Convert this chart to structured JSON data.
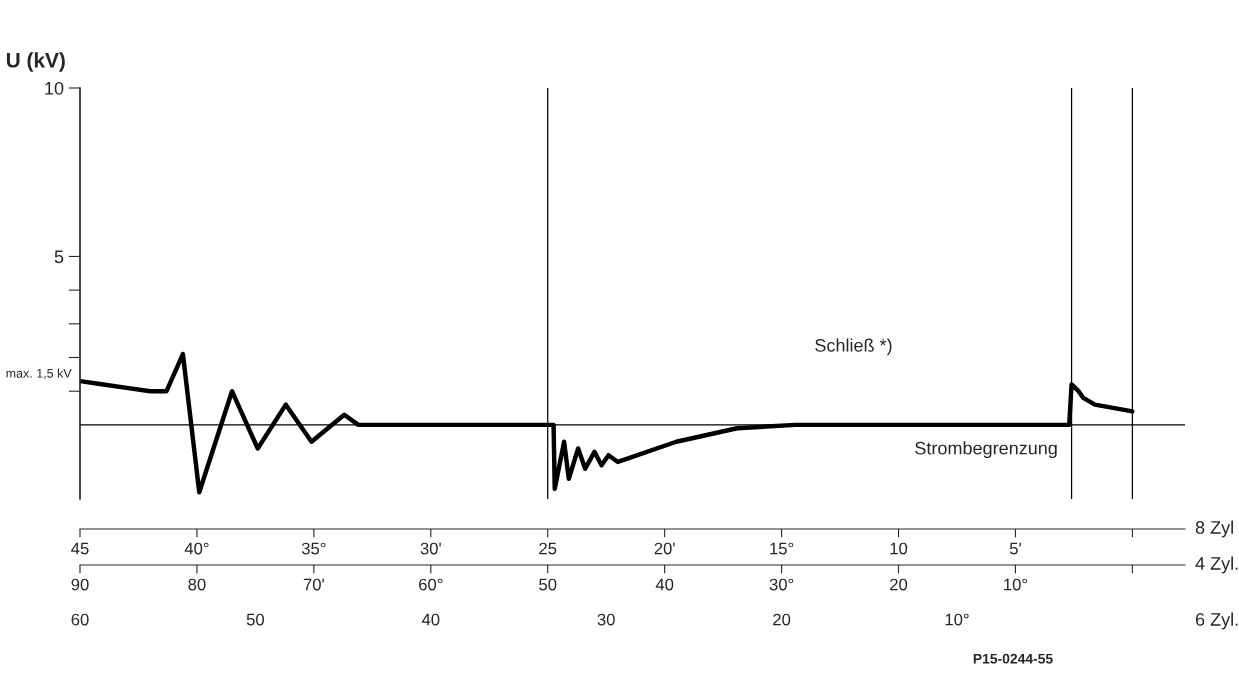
{
  "chart_data": {
    "type": "line",
    "ylabel": "U (kV)",
    "xlabel": "8 Zyl",
    "x2label": "4 Zyl.",
    "series": [
      {
        "color": "#000000",
        "x": [
          45,
          44,
          43,
          42,
          41.3,
          40.6,
          39.9,
          38.5,
          37.4,
          36.2,
          35.1,
          33.7,
          33.1,
          24.75,
          24.7,
          24.3,
          24.1,
          23.7,
          23.4,
          23.0,
          22.7,
          22.4,
          22.0,
          19.5,
          16.9,
          14.4,
          2.7,
          2.6,
          2.3,
          2.1,
          1.6,
          0
        ],
        "values": [
          1.3,
          1.2,
          1.1,
          1.0,
          1.0,
          2.1,
          -2.0,
          1.0,
          -0.7,
          0.6,
          -0.5,
          0.3,
          0,
          0,
          -1.9,
          -0.5,
          -1.6,
          -0.7,
          -1.3,
          -0.8,
          -1.2,
          -0.9,
          -1.1,
          -0.5,
          -0.1,
          0,
          0,
          1.2,
          1.0,
          0.8,
          0.6,
          0.4
        ]
      }
    ],
    "xlim": [
      45,
      -2.25
    ],
    "x2lim": [
      90,
      -4.5
    ],
    "xticks": [
      45,
      {
        "value": 40,
        "label": "40°"
      },
      {
        "value": 35,
        "label": "35°"
      },
      {
        "value": 30,
        "label": "30'"
      },
      25,
      {
        "value": 20,
        "label": "20'"
      },
      {
        "value": 15,
        "label": "15°"
      },
      10,
      {
        "value": 5,
        "label": "5'"
      },
      {
        "value": 0,
        "label": null
      }
    ],
    "x2ticks": [
      90,
      80,
      {
        "value": 70,
        "label": "70'"
      },
      {
        "value": 60,
        "label": "60°"
      },
      50,
      40,
      {
        "value": 30,
        "label": "30°"
      },
      20,
      {
        "value": 10,
        "label": "10°"
      },
      {
        "value": 0,
        "label": null
      }
    ],
    "ylim": [
      -2.2,
      10
    ],
    "yticks": [
      {
        "value": 1,
        "label": null
      },
      {
        "value": 2,
        "label": null
      },
      {
        "value": 3,
        "label": null
      },
      {
        "value": 4,
        "label": null
      },
      5,
      10
    ],
    "ref_lines": [
      {
        "axis": "y",
        "value": 0
      },
      {
        "axis": "x",
        "value": 25
      },
      {
        "axis": "x",
        "value": 0
      },
      {
        "axis": "x",
        "value": 2.6
      }
    ],
    "annotations": [
      {
        "text": "max. 1,5 kV",
        "x": 45,
        "y": 1.5
      },
      "Schließ *)",
      "Strombegrenzung",
      "60",
      "50",
      "40",
      "30",
      "20",
      "10°",
      "6 Zyl.",
      "P15-0244-55"
    ],
    "grid": false
  }
}
